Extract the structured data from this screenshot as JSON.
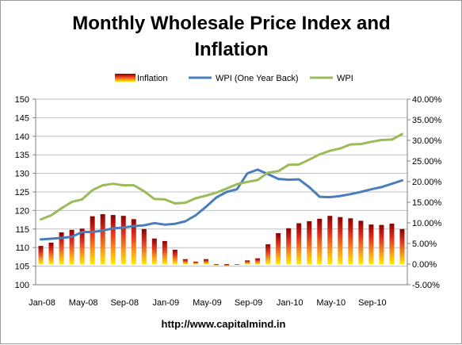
{
  "chart_data": {
    "type": "bar",
    "title_lines": [
      "Monthly Wholesale Price Index and",
      "Inflation"
    ],
    "xlabel": "",
    "ylabel": "",
    "y_left": {
      "range": [
        100,
        150
      ],
      "ticks": [
        "100",
        "105",
        "110",
        "115",
        "120",
        "125",
        "130",
        "135",
        "140",
        "145",
        "150"
      ]
    },
    "y_right": {
      "range": [
        -5,
        40
      ],
      "ticks": [
        "-5.00%",
        "0.00%",
        "5.00%",
        "10.00%",
        "15.00%",
        "20.00%",
        "25.00%",
        "30.00%",
        "35.00%",
        "40.00%"
      ]
    },
    "x_ticks": [
      "Jan-08",
      "May-08",
      "Sep-08",
      "Jan-09",
      "May-09",
      "Sep-09",
      "Jan-10",
      "May-10",
      "Sep-10"
    ],
    "x_tick_indices": [
      0,
      4,
      8,
      12,
      16,
      20,
      24,
      28,
      32
    ],
    "months": [
      "Jan-08",
      "Feb-08",
      "Mar-08",
      "Apr-08",
      "May-08",
      "Jun-08",
      "Jul-08",
      "Aug-08",
      "Sep-08",
      "Oct-08",
      "Nov-08",
      "Dec-08",
      "Jan-09",
      "Feb-09",
      "Mar-09",
      "Apr-09",
      "May-09",
      "Jun-09",
      "Jul-09",
      "Aug-09",
      "Sep-09",
      "Oct-09",
      "Nov-09",
      "Dec-09",
      "Jan-10",
      "Feb-10",
      "Mar-10",
      "Apr-10",
      "May-10",
      "Jun-10",
      "Jul-10",
      "Aug-10",
      "Sep-10",
      "Oct-10",
      "Nov-10",
      "Dec-10"
    ],
    "series": [
      {
        "name": "Inflation",
        "kind": "bar",
        "axis": "right",
        "values": [
          4.4,
          5.2,
          7.7,
          8.3,
          8.6,
          11.6,
          12.1,
          11.9,
          11.7,
          10.9,
          8.5,
          6.2,
          5.6,
          3.5,
          1.2,
          0.6,
          1.2,
          -0.3,
          -0.5,
          -0.2,
          0.9,
          1.4,
          4.8,
          7.5,
          8.7,
          9.9,
          10.4,
          11.0,
          11.7,
          11.4,
          11.1,
          10.5,
          9.6,
          9.5,
          9.8,
          8.5
        ]
      },
      {
        "name": "WPI (One Year Back)",
        "kind": "line",
        "axis": "left",
        "color": "#4a7ebb",
        "values": [
          112.2,
          112.4,
          112.6,
          112.9,
          114.2,
          114.2,
          114.6,
          115.2,
          115.4,
          115.8,
          116.0,
          116.6,
          116.2,
          116.4,
          117.1,
          118.7,
          121.0,
          123.5,
          125.0,
          125.7,
          130.0,
          131.0,
          129.8,
          128.5,
          128.3,
          128.4,
          126.3,
          123.7,
          123.6,
          123.9,
          124.4,
          125.0,
          125.7,
          126.3,
          127.2,
          128.1
        ]
      },
      {
        "name": "WPI",
        "kind": "line",
        "axis": "left",
        "color": "#9bbb59",
        "values": [
          117.6,
          118.7,
          120.6,
          122.3,
          123.0,
          125.5,
          126.8,
          127.2,
          126.8,
          126.8,
          125.2,
          123.1,
          123.0,
          121.9,
          122.1,
          123.3,
          124.0,
          124.8,
          125.9,
          127.1,
          127.7,
          128.2,
          130.2,
          130.6,
          132.3,
          132.4,
          133.7,
          135.1,
          136.1,
          136.7,
          137.8,
          137.9,
          138.5,
          139.0,
          139.1,
          140.6
        ]
      }
    ],
    "legend": {
      "placement": "top",
      "entries": [
        "Inflation",
        "WPI (One Year Back)",
        "WPI"
      ]
    },
    "grid": {
      "horizontal": true,
      "vertical": false
    }
  },
  "source_url": "http://www.capitalmind.in"
}
